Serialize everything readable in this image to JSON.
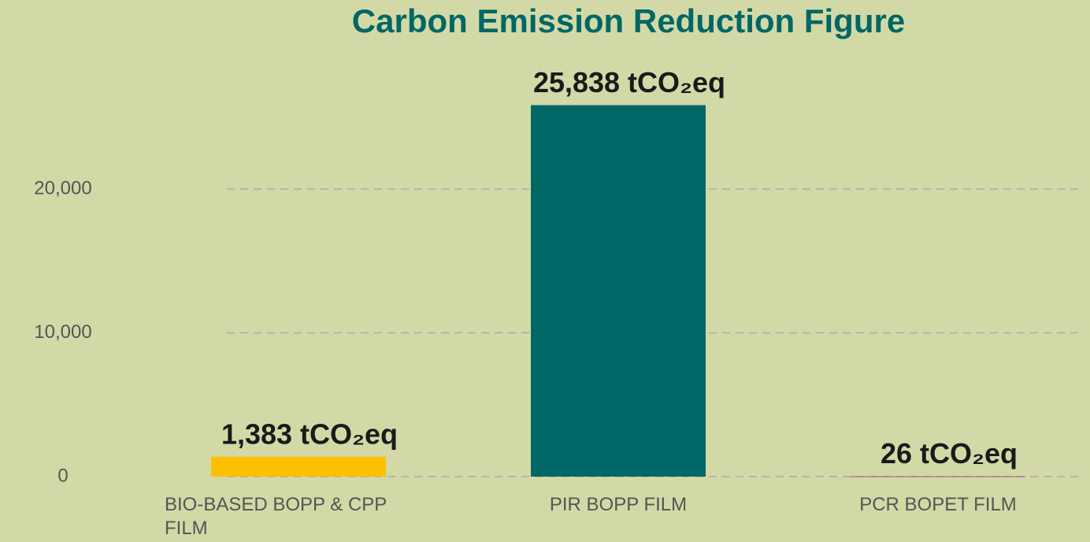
{
  "chart_data": {
    "type": "bar",
    "title": "Carbon Emission Reduction Figure",
    "categories": [
      "BIO-BASED BOPP & CPP FILM",
      "PIR BOPP FILM",
      "PCR BOPET FILM"
    ],
    "values": [
      1383,
      25838,
      26
    ],
    "value_labels": [
      "1,383 tCO₂eq",
      "25,838 tCO₂eq",
      "26 tCO₂eq"
    ],
    "colors": [
      "#fcc000",
      "#006766",
      "#b4566a"
    ],
    "ylim": [
      0,
      30000
    ],
    "yticks": [
      0,
      {
        "value": 10000,
        "label": "10,000"
      },
      {
        "value": 20000,
        "label": "20,000"
      }
    ],
    "grid": true
  }
}
